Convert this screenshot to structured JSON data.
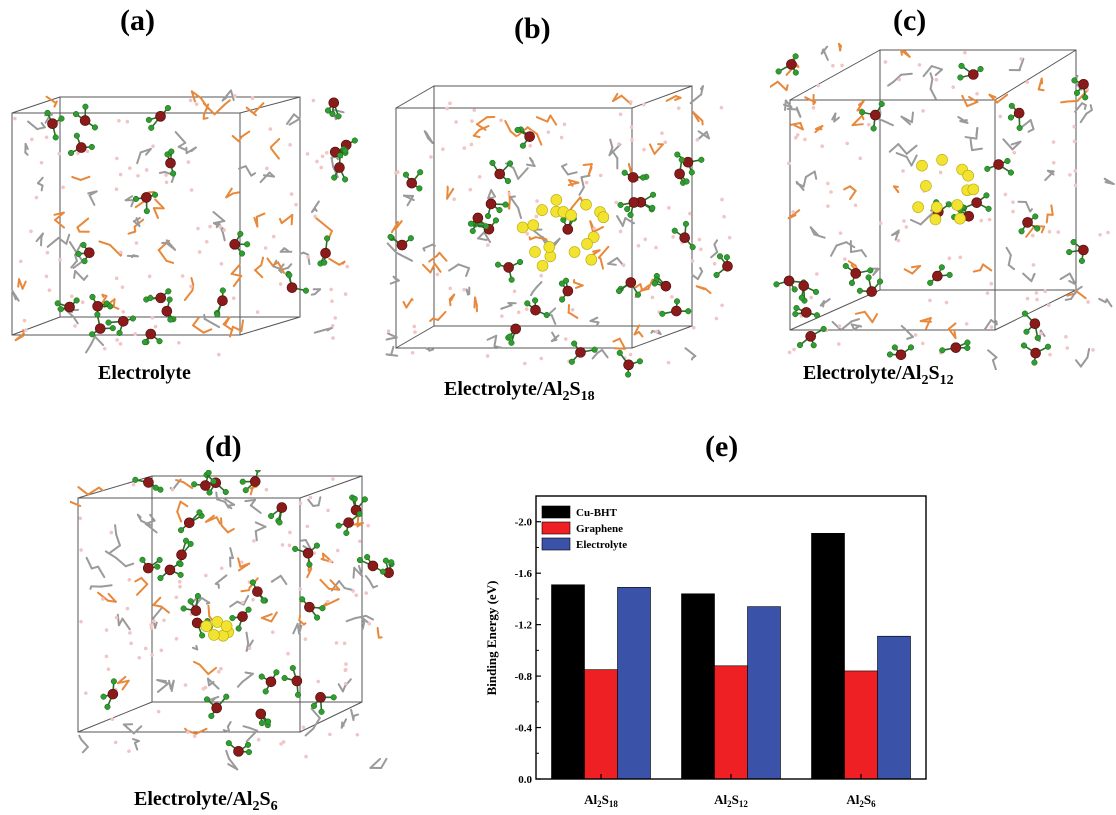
{
  "panels": [
    {
      "label": "(a)",
      "caption_main": "Electrolyte",
      "caption_sub1": "",
      "caption_mid": "",
      "caption_sub2": ""
    },
    {
      "label": "(b)",
      "caption_main": "Electrolyte/Al",
      "caption_sub1": "2",
      "caption_mid": "S",
      "caption_sub2": "18"
    },
    {
      "label": "(c)",
      "caption_main": "Electrolyte/Al",
      "caption_sub1": "2",
      "caption_mid": "S",
      "caption_sub2": "12"
    },
    {
      "label": "(d)",
      "caption_main": "Electrolyte/Al",
      "caption_sub1": "2",
      "caption_mid": "S",
      "caption_sub2": "6"
    },
    {
      "label": "(e)"
    }
  ],
  "colors": {
    "Cu-BHT": "#000000",
    "Graphene": "#ee2024",
    "Electrolyte": "#3a52a8",
    "atom_al": "#8b1a1a",
    "atom_cl": "#2e9e2e",
    "atom_s": "#f2e330",
    "bond_c": "#9a9a9a",
    "bond_o": "#e8883a",
    "atom_h": "#f2c4c4"
  },
  "chart_data": {
    "type": "bar",
    "categories": [
      {
        "main": "Al",
        "sub1": "2",
        "mid": "S",
        "sub2": "18"
      },
      {
        "main": "Al",
        "sub1": "2",
        "mid": "S",
        "sub2": "12"
      },
      {
        "main": "Al",
        "sub1": "2",
        "mid": "S",
        "sub2": "6"
      }
    ],
    "series": [
      {
        "name": "Cu-BHT",
        "values": [
          -1.51,
          -1.44,
          -1.91
        ]
      },
      {
        "name": "Graphene",
        "values": [
          -0.85,
          -0.88,
          -0.84
        ]
      },
      {
        "name": "Electrolyte",
        "values": [
          -1.49,
          -1.34,
          -1.11
        ]
      }
    ],
    "ylabel": "Binding Energy (eV)",
    "ylim": [
      0,
      -2.2
    ],
    "yticks": [
      "0.0",
      "-0.4",
      "-0.8",
      "-1.2",
      "-1.6",
      "-2.0"
    ],
    "ytick_values": [
      0,
      -0.4,
      -0.8,
      -1.2,
      -1.6,
      -2.0
    ],
    "inverted_axis": true,
    "legend_position": "top-left"
  }
}
